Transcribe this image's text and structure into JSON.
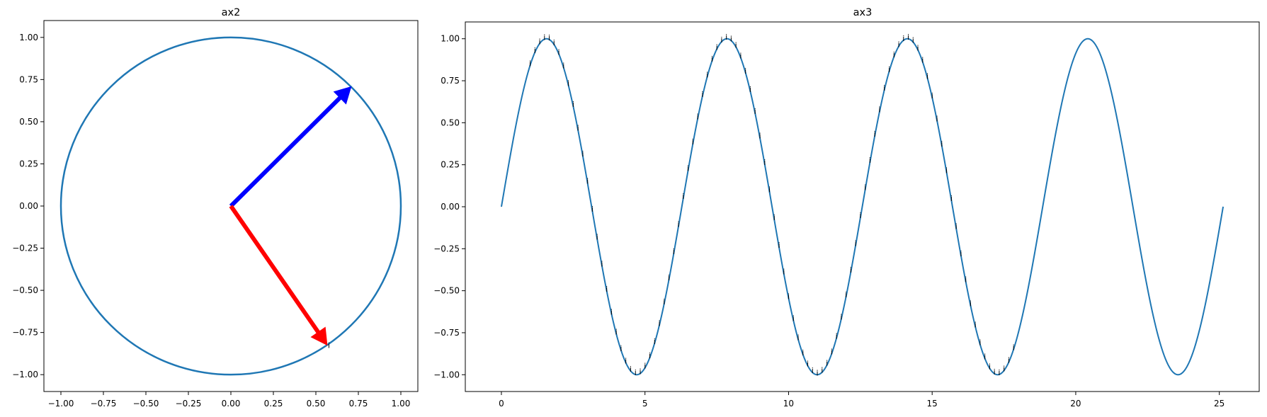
{
  "chart_data": [
    {
      "id": "ax2",
      "type": "line",
      "title": "ax2",
      "xlabel": "",
      "ylabel": "",
      "xlim": [
        -1.1,
        1.1
      ],
      "ylim": [
        -1.1,
        1.1
      ],
      "xticks": [
        -1.0,
        -0.75,
        -0.5,
        -0.25,
        0.0,
        0.25,
        0.5,
        0.75,
        1.0
      ],
      "xtick_labels": [
        "−1.00",
        "−0.75",
        "−0.50",
        "−0.25",
        "0.00",
        "0.25",
        "0.50",
        "0.75",
        "1.00"
      ],
      "yticks": [
        -1.0,
        -0.75,
        -0.5,
        -0.25,
        0.0,
        0.25,
        0.5,
        0.75,
        1.0
      ],
      "ytick_labels": [
        "−1.00",
        "−0.75",
        "−0.50",
        "−0.25",
        "0.00",
        "0.25",
        "0.50",
        "0.75",
        "1.00"
      ],
      "grid": false,
      "series": [
        {
          "kind": "circle",
          "center": [
            0,
            0
          ],
          "radius": 1.0,
          "color": "#1f77b4"
        }
      ],
      "arrows": [
        {
          "from": [
            0,
            0
          ],
          "to": [
            0.707,
            0.707
          ],
          "color": "#0000ff"
        },
        {
          "from": [
            0,
            0
          ],
          "to": [
            0.566,
            -0.824
          ],
          "color": "#ff0000"
        }
      ],
      "annotations": [
        {
          "text": "i",
          "x": 0.566,
          "y": -0.824
        }
      ]
    },
    {
      "id": "ax3",
      "type": "line",
      "title": "ax3",
      "xlabel": "",
      "ylabel": "",
      "xlim": [
        -1.257,
        26.389
      ],
      "ylim": [
        -1.1,
        1.1
      ],
      "xticks": [
        0,
        5,
        10,
        15,
        20,
        25
      ],
      "xtick_labels": [
        "0",
        "5",
        "10",
        "15",
        "20",
        "25"
      ],
      "yticks": [
        -1.0,
        -0.75,
        -0.5,
        -0.25,
        0.0,
        0.25,
        0.5,
        0.75,
        1.0
      ],
      "ytick_labels": [
        "−1.00",
        "−0.75",
        "−0.50",
        "−0.25",
        "0.00",
        "0.25",
        "0.50",
        "0.75",
        "1.00"
      ],
      "grid": false,
      "series": [
        {
          "kind": "function",
          "function": "sin(x)",
          "x_range": [
            0,
            25.133
          ],
          "color": "#1f77b4"
        }
      ],
      "annotation_marker": {
        "text": "i",
        "function": "sin(x)",
        "x_start": 1.0,
        "x_end": 17.9,
        "x_step": 0.1667
      }
    }
  ]
}
